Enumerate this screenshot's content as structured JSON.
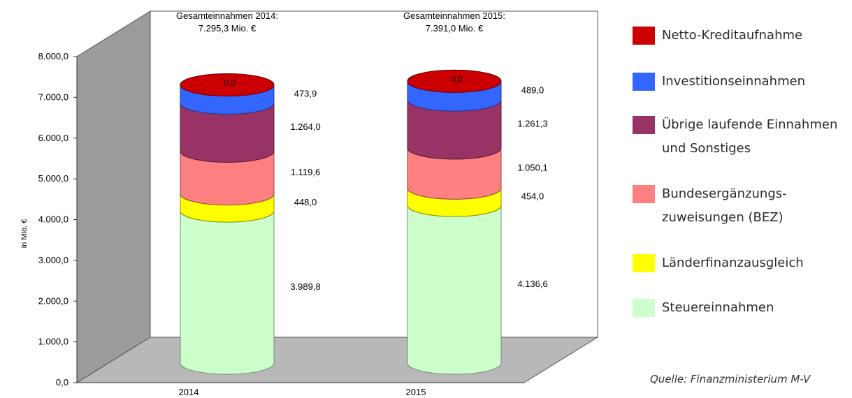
{
  "chart_data": {
    "type": "bar",
    "stacked": true,
    "style": "3d-cylinder",
    "categories": [
      "2014",
      "2015"
    ],
    "ylabel": "in Mio. €",
    "ylim": [
      0,
      8000
    ],
    "yticks": [
      "0,0",
      "1.000,0",
      "2.000,0",
      "3.000,0",
      "4.000,0",
      "5.000,0",
      "6.000,0",
      "7.000,0",
      "8.000,0"
    ],
    "ytick_values": [
      0,
      1000,
      2000,
      3000,
      4000,
      5000,
      6000,
      7000,
      8000
    ],
    "grid": false,
    "legend_position": "right",
    "series": [
      {
        "name": "Steuereinnahmen",
        "color": "#ccffcc",
        "values": [
          3989.8,
          4136.6
        ],
        "labels": [
          "3.989,8",
          "4.136,6"
        ]
      },
      {
        "name": "Länderfinanzausgleich",
        "color": "#ffff00",
        "values": [
          448.0,
          454.0
        ],
        "labels": [
          "448,0",
          "454,0"
        ]
      },
      {
        "name": "Bundesergänzungs-\nzuweisungen (BEZ)",
        "color": "#ff8080",
        "values": [
          1119.6,
          1050.1
        ],
        "labels": [
          "1.119,6",
          "1.050,1"
        ]
      },
      {
        "name": "Übrige laufende Einnahmen\nund Sonstiges",
        "color": "#993366",
        "values": [
          1264.0,
          1261.3
        ],
        "labels": [
          "1.264,0",
          "1.261,3"
        ]
      },
      {
        "name": "Investitionseinnahmen",
        "color": "#3366ff",
        "values": [
          473.9,
          489.0
        ],
        "labels": [
          "473,9",
          "489,0"
        ]
      },
      {
        "name": "Netto-Kreditaufnahme",
        "color": "#cc0000",
        "values": [
          0.0,
          0.0
        ],
        "labels": [
          "0,0",
          "0,0"
        ]
      }
    ],
    "totals": [
      {
        "line1": "Gesamteinnahmen 2014:",
        "line2": "7.295,3 Mio. €"
      },
      {
        "line1": "Gesamteinnahmen 2015:",
        "line2": "7.391,0 Mio. €"
      }
    ]
  },
  "legend_order": [
    5,
    4,
    3,
    2,
    1,
    0
  ],
  "source": "Quelle: Finanzministerium M-V"
}
